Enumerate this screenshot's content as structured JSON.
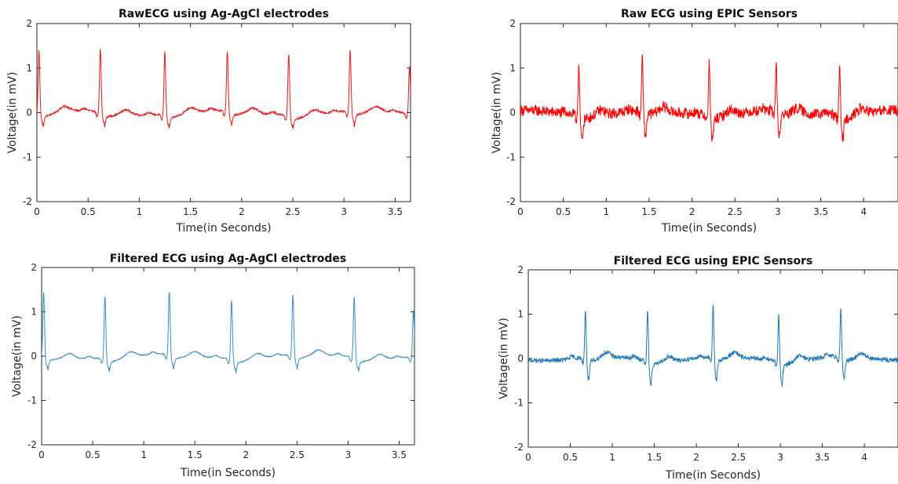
{
  "chart_data": [
    {
      "type": "line",
      "title": "RawECG using Ag-AgCl electrodes",
      "xlabel": "Time(in Seconds)",
      "ylabel": "Voltage(in mV)",
      "xlim": [
        0,
        3.65
      ],
      "ylim": [
        -2,
        2
      ],
      "xticks": [
        0,
        0.5,
        1,
        1.5,
        2,
        2.5,
        3,
        3.5
      ],
      "xtick_labels": [
        "0",
        "0.5",
        "1",
        "1.5",
        "2",
        "2.5",
        "3",
        "3.5"
      ],
      "yticks": [
        -2,
        -1,
        0,
        1,
        2
      ],
      "ytick_labels": [
        "-2",
        "-1",
        "0",
        "1",
        "2"
      ],
      "color": "#e41a1c",
      "series": [
        {
          "values": {
            "baseline_mv": 0,
            "r_peak_times_s": [
              0.02,
              0.62,
              1.25,
              1.86,
              2.46,
              3.06,
              3.64
            ],
            "r_peak_values_mv": [
              1.42,
              1.4,
              1.42,
              1.32,
              1.36,
              1.37,
              1.05
            ],
            "s_trough_mv": -0.25,
            "noise_amplitude_mv": 0.02
          }
        }
      ]
    },
    {
      "type": "line",
      "title": "Raw ECG using EPIC Sensors",
      "xlabel": "Time(in Seconds)",
      "ylabel": "Voltage(in mV)",
      "xlim": [
        0,
        4.4
      ],
      "ylim": [
        -2,
        2
      ],
      "xticks": [
        0,
        0.5,
        1,
        1.5,
        2,
        2.5,
        3,
        3.5,
        4
      ],
      "xtick_labels": [
        "0",
        "0.5",
        "1",
        "1.5",
        "2",
        "2.5",
        "3",
        "3.5",
        "4"
      ],
      "yticks": [
        -2,
        -1,
        0,
        1,
        2
      ],
      "ytick_labels": [
        "-2",
        "-1",
        "0",
        "1",
        "2"
      ],
      "color": "#ff0000",
      "series": [
        {
          "values": {
            "baseline_mv": 0,
            "r_peak_times_s": [
              0.68,
              1.42,
              2.2,
              2.98,
              3.72
            ],
            "r_peak_values_mv": [
              1.12,
              1.2,
              1.24,
              1.06,
              1.16
            ],
            "s_trough_mv": -0.55,
            "noise_amplitude_mv": 0.12
          }
        }
      ]
    },
    {
      "type": "line",
      "title": "Filtered ECG using Ag-AgCl electrodes",
      "xlabel": "Time(in Seconds)",
      "ylabel": "Voltage(in mV)",
      "xlim": [
        0,
        3.65
      ],
      "ylim": [
        -2,
        2
      ],
      "xticks": [
        0,
        0.5,
        1,
        1.5,
        2,
        2.5,
        3,
        3.5
      ],
      "xtick_labels": [
        "0",
        "0.5",
        "1",
        "1.5",
        "2",
        "2.5",
        "3",
        "3.5"
      ],
      "yticks": [
        -2,
        -1,
        0,
        1,
        2
      ],
      "ytick_labels": [
        "-2",
        "-1",
        "0",
        "1",
        "2"
      ],
      "color": "#3a8ec4",
      "series": [
        {
          "values": {
            "baseline_mv": 0,
            "r_peak_times_s": [
              0.02,
              0.62,
              1.25,
              1.86,
              2.46,
              3.06,
              3.64
            ],
            "r_peak_values_mv": [
              1.42,
              1.4,
              1.42,
              1.32,
              1.36,
              1.37,
              1.05
            ],
            "s_trough_mv": -0.25,
            "noise_amplitude_mv": 0.01
          }
        }
      ]
    },
    {
      "type": "line",
      "title": "Filtered ECG using EPIC Sensors",
      "xlabel": "Time(in Seconds)",
      "ylabel": "Voltage(in mV)",
      "xlim": [
        0,
        4.4
      ],
      "ylim": [
        -2,
        2
      ],
      "xticks": [
        0,
        0.5,
        1,
        1.5,
        2,
        2.5,
        3,
        3.5,
        4
      ],
      "xtick_labels": [
        "0",
        "0.5",
        "1",
        "1.5",
        "2",
        "2.5",
        "3",
        "3.5",
        "4"
      ],
      "yticks": [
        -2,
        -1,
        0,
        1,
        2
      ],
      "ytick_labels": [
        "-2",
        "-1",
        "0",
        "1",
        "2"
      ],
      "color": "#1f77b4",
      "series": [
        {
          "values": {
            "baseline_mv": 0,
            "r_peak_times_s": [
              0.68,
              1.42,
              2.2,
              2.98,
              3.72
            ],
            "r_peak_values_mv": [
              1.08,
              1.12,
              1.16,
              1.02,
              1.1
            ],
            "s_trough_mv": -0.5,
            "noise_amplitude_mv": 0.05
          }
        }
      ]
    }
  ]
}
